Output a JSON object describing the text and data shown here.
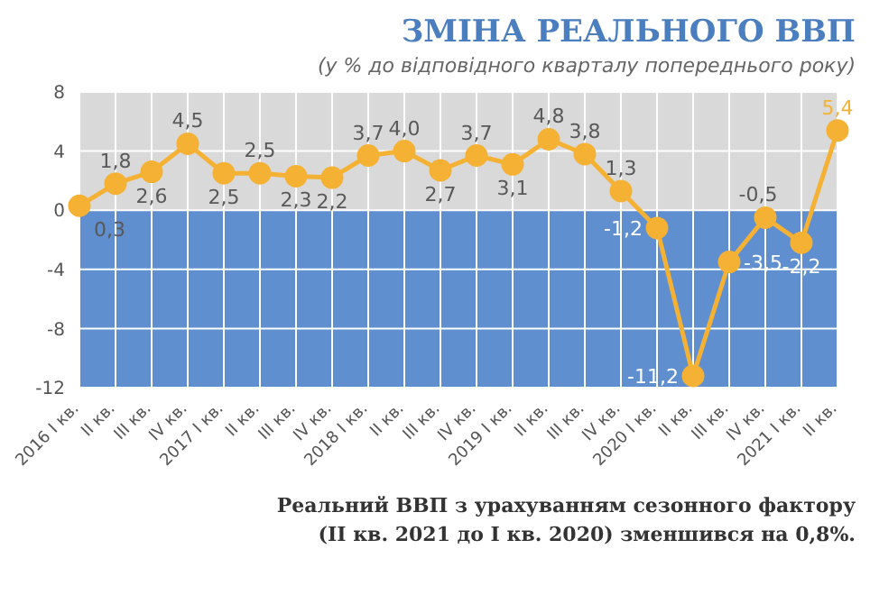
{
  "chart_data": {
    "type": "line",
    "title": "ЗМІНА РЕАЛЬНОГО ВВП",
    "subtitle": "(у % до відповідного кварталу попереднього року)",
    "categories": [
      "2016 I кв.",
      "II кв.",
      "III кв.",
      "IV кв.",
      "2017 I кв.",
      "II кв.",
      "III кв.",
      "IV кв.",
      "2018 I кв.",
      "II кв.",
      "III кв.",
      "IV кв.",
      "2019 I кв.",
      "II кв.",
      "III кв.",
      "IV кв.",
      "2020 I кв.",
      "II кв.",
      "III кв.",
      "IV кв.",
      "2021 I кв.",
      "II кв."
    ],
    "series": [
      {
        "color": "#f5b133",
        "values": [
          0.3,
          1.8,
          2.6,
          4.5,
          2.5,
          2.5,
          2.3,
          2.2,
          3.7,
          4.0,
          2.7,
          3.7,
          3.1,
          4.8,
          3.8,
          1.3,
          -1.2,
          -11.2,
          -3.5,
          -0.5,
          -2.2,
          5.4
        ],
        "value_labels": [
          "0,3",
          "1,8",
          "2,6",
          "4,5",
          "2,5",
          "2,5",
          "2,3",
          "2,2",
          "3,7",
          "4,0",
          "2,7",
          "3,7",
          "3,1",
          "4,8",
          "3,8",
          "1,3",
          "-1,2",
          "-11,2",
          "-3,5",
          "-0,5",
          "-2,2",
          "5,4"
        ]
      }
    ],
    "ylim": [
      -12,
      8
    ],
    "yticks": [
      8,
      4,
      0,
      -4,
      -8,
      -12
    ],
    "grid": true,
    "marker": "circle",
    "line_style": "solid",
    "bands": [
      {
        "axis": "y",
        "from": 0,
        "to": 8,
        "color": "#d9d9d9"
      },
      {
        "axis": "y",
        "from": -12,
        "to": 0,
        "color": "#5f8fcf"
      }
    ],
    "annotations": [
      "Реальний ВВП з урахуванням сезонного фактору (II кв. 2021 до I кв. 2020) зменшився на 0,8%."
    ]
  }
}
